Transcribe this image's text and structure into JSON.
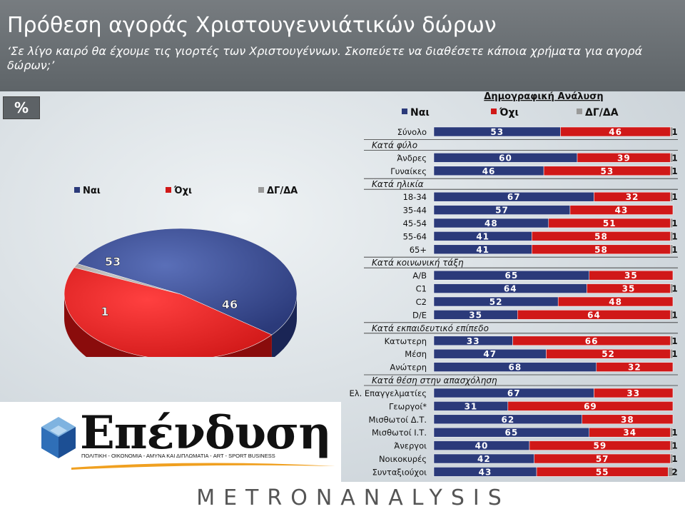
{
  "header": {
    "title": "Πρόθεση αγοράς Χριστουγεννιάτικών δώρων",
    "subtitle": "‘Σε λίγο καιρό θα έχουμε τις γιορτές των Χριστουγέννων. Σκοπεύετε να διαθέσετε κάποια χρήματα για αγορά δώρων;’"
  },
  "percent_badge": "%",
  "logo": {
    "wordmark": "Επένδυση",
    "tagline": "ΠΟΛΙΤΙΚΗ - ΟΙΚΟΝΟΜΙΑ - ΑΜΥΝΑ ΚΑΙ ΔΙΠΛΩΜΑΤΙΑ - ART - SPORT BUSINESS"
  },
  "footer": {
    "brand": "METRONANALYSIS"
  },
  "colors": {
    "nai": "#2b3a7a",
    "oxi": "#d01818",
    "dgda": "#9a9a9a"
  },
  "chart_data": [
    {
      "type": "pie",
      "legend": [
        "Ναι",
        "Όχι",
        "ΔΓ/ΔΑ"
      ],
      "legend_position": "top",
      "values": [
        53,
        46,
        1
      ],
      "labels": [
        "53",
        "46",
        "1"
      ]
    },
    {
      "type": "bar",
      "orientation": "horizontal",
      "stacked": true,
      "title": "Δημογραφική Ανάλυση",
      "legend": [
        "Ναι",
        "Όχι",
        "ΔΓ/ΔΑ"
      ],
      "legend_position": "top",
      "xlim": [
        0,
        100
      ],
      "rows": [
        {
          "kind": "bar",
          "label": "Σύνολο",
          "values": [
            53,
            46,
            1
          ]
        },
        {
          "kind": "group",
          "label": "Κατά φύλο"
        },
        {
          "kind": "bar",
          "label": "Άνδρες",
          "values": [
            60,
            39,
            1
          ]
        },
        {
          "kind": "bar",
          "label": "Γυναίκες",
          "values": [
            46,
            53,
            1
          ]
        },
        {
          "kind": "group",
          "label": "Κατά ηλικία"
        },
        {
          "kind": "bar",
          "label": "18-34",
          "values": [
            67,
            32,
            1
          ]
        },
        {
          "kind": "bar",
          "label": "35-44",
          "values": [
            57,
            43,
            0
          ]
        },
        {
          "kind": "bar",
          "label": "45-54",
          "values": [
            48,
            51,
            1
          ]
        },
        {
          "kind": "bar",
          "label": "55-64",
          "values": [
            41,
            58,
            1
          ]
        },
        {
          "kind": "bar",
          "label": "65+",
          "values": [
            41,
            58,
            1
          ]
        },
        {
          "kind": "group",
          "label": "Κατά κοινωνική τάξη"
        },
        {
          "kind": "bar",
          "label": "A/B",
          "values": [
            65,
            35,
            0
          ]
        },
        {
          "kind": "bar",
          "label": "C1",
          "values": [
            64,
            35,
            1
          ]
        },
        {
          "kind": "bar",
          "label": "C2",
          "values": [
            52,
            48,
            0
          ]
        },
        {
          "kind": "bar",
          "label": "D/E",
          "values": [
            35,
            64,
            1
          ]
        },
        {
          "kind": "group",
          "label": "Κατά εκπαιδευτικό επίπεδο"
        },
        {
          "kind": "bar",
          "label": "Κατωτερη",
          "values": [
            33,
            66,
            1
          ]
        },
        {
          "kind": "bar",
          "label": "Μέση",
          "values": [
            47,
            52,
            1
          ]
        },
        {
          "kind": "bar",
          "label": "Ανώτερη",
          "values": [
            68,
            32,
            0
          ]
        },
        {
          "kind": "group",
          "label": "Κατά θέση στην απασχόληση"
        },
        {
          "kind": "bar",
          "label": "Ελ. Επαγγελματίες",
          "values": [
            67,
            33,
            0
          ]
        },
        {
          "kind": "bar",
          "label": "Γεωργοί*",
          "values": [
            31,
            69,
            0
          ]
        },
        {
          "kind": "bar",
          "label": "Μισθωτοί Δ.Τ.",
          "values": [
            62,
            38,
            0
          ]
        },
        {
          "kind": "bar",
          "label": "Μισθωτοί Ι.Τ.",
          "values": [
            65,
            34,
            1
          ]
        },
        {
          "kind": "bar",
          "label": "Άνεργοι",
          "values": [
            40,
            59,
            1
          ]
        },
        {
          "kind": "bar",
          "label": "Νοικοκυρές",
          "values": [
            42,
            57,
            1
          ]
        },
        {
          "kind": "bar",
          "label": "Συνταξιούχοι",
          "values": [
            43,
            55,
            2
          ]
        }
      ]
    }
  ]
}
